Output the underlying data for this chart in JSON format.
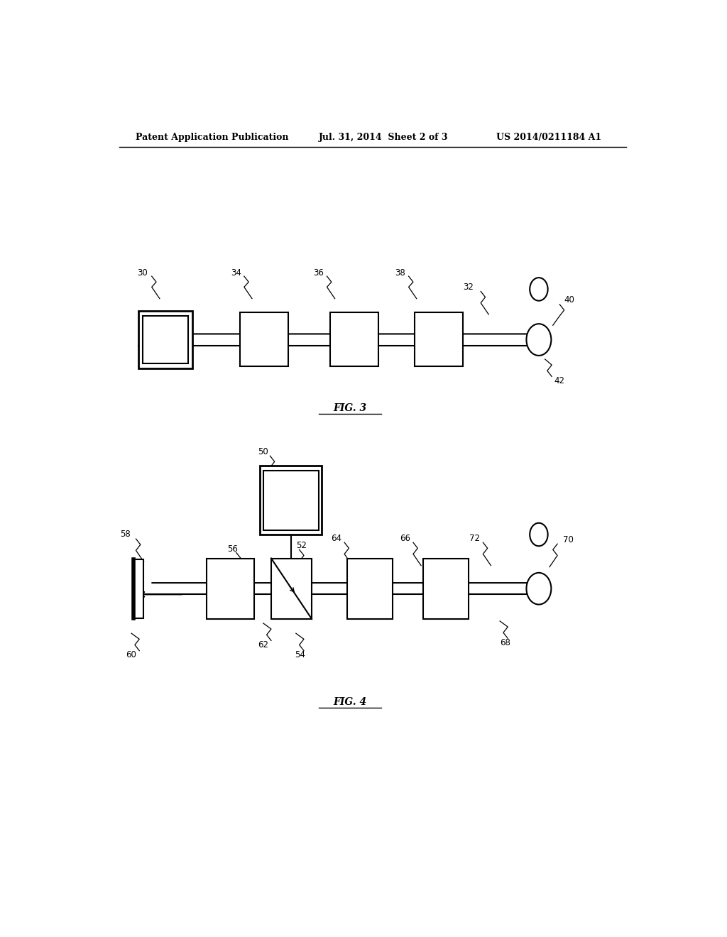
{
  "bg_color": "#ffffff",
  "header_text": "Patent Application Publication",
  "header_date": "Jul. 31, 2014  Sheet 2 of 3",
  "header_patent": "US 2014/0211184 A1",
  "fig3_label": "FIG. 3",
  "fig4_label": "FIG. 4"
}
